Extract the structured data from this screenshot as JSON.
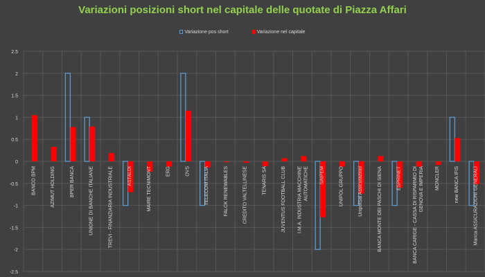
{
  "chart_data": {
    "type": "bar",
    "title": "Variazioni posizioni short nel capitale delle quotate di Piazza Affari",
    "xlabel": "",
    "ylabel": "",
    "ylim": [
      -2.5,
      2.5
    ],
    "yticks": [
      "2.5",
      "2",
      "1.5",
      "1",
      "0.5",
      "0",
      "-0.5",
      "-1",
      "-1.5",
      "-2",
      "-2.5"
    ],
    "grid": true,
    "legend_position": "top",
    "categories": [
      [
        "BANCO BPM"
      ],
      [
        "AZIMUT HOLDING"
      ],
      [
        "BPER BANCA"
      ],
      [
        "UNIONE DI BANCHE ITALIANE"
      ],
      [
        "TREVI - FINANZIARIA INDUSTRIALE"
      ],
      [
        "ASTALDI"
      ],
      [
        "MAIRE TECNIMONT"
      ],
      [
        "ERG"
      ],
      [
        "OVS"
      ],
      [
        "TELECOM ITALIA"
      ],
      [
        "FALCK RENEWABLES"
      ],
      [
        "CREDITO VALTELLINESE"
      ],
      [
        "TENARIS SA"
      ],
      [
        "JUVENTUS FOOTBALL CLUB"
      ],
      [
        "I.M.A. INDUSTRIA MACCHINE",
        "AUTOMATICHE"
      ],
      [
        "SAIPEM"
      ],
      [
        "UNIPOL GRUPPO"
      ],
      [
        "UnipolSai Assicurazioni"
      ],
      [
        "BANCA MONTE DEI PASCHI DI SIENA"
      ],
      [
        "ESPRINET"
      ],
      [
        "BANCA CARIGE - CASSA DI RISPARMIO DI",
        "GENOVA E IMPERIA"
      ],
      [
        "MONCLER"
      ],
      [
        "new BANCA IFIS"
      ],
      [
        "Manca ASSICURAZIONI GENERALI"
      ]
    ],
    "series": [
      {
        "name": "Variazione pos short",
        "color": "#5b9bd5",
        "values": [
          0,
          0,
          2,
          1,
          0,
          -1,
          0,
          0,
          2,
          -1,
          0,
          0,
          0,
          0,
          0,
          -2,
          0,
          -1,
          0,
          -1,
          0,
          0,
          1,
          -1
        ]
      },
      {
        "name": "Variazione nel capitale",
        "color": "#ff0000",
        "values": [
          1.05,
          0.33,
          0.78,
          0.79,
          0.19,
          -0.7,
          -0.23,
          -0.12,
          1.15,
          -0.14,
          -0.02,
          -0.03,
          -0.11,
          0.07,
          0.12,
          -1.27,
          -0.12,
          -0.73,
          0.12,
          -0.6,
          -0.12,
          -0.08,
          0.53,
          -0.52
        ]
      }
    ]
  }
}
